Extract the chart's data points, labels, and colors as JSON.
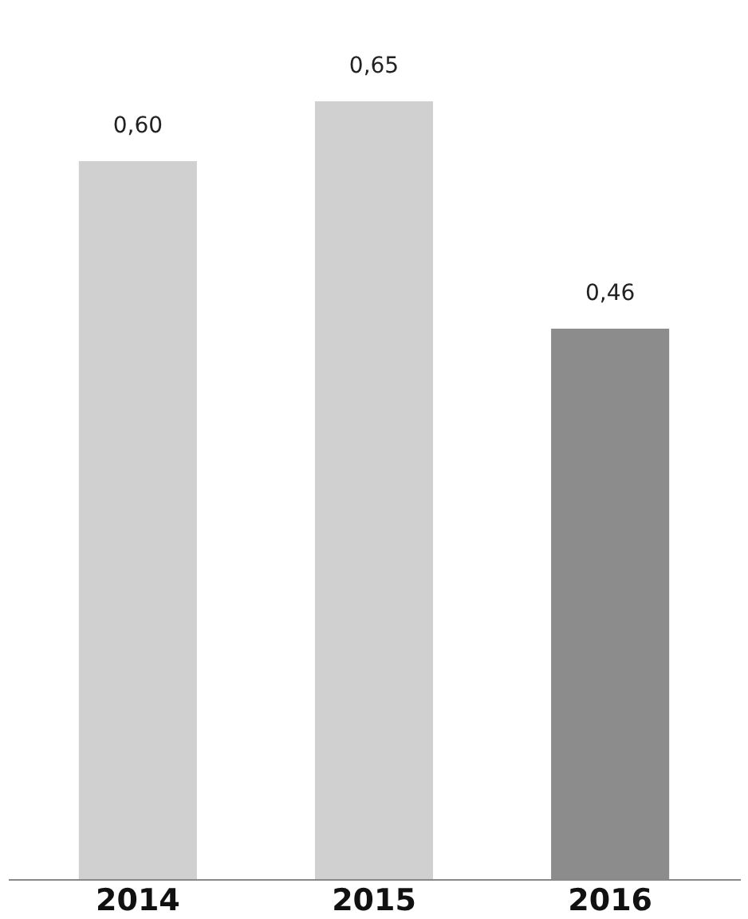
{
  "chart_data": {
    "type": "bar",
    "categories": [
      "2014",
      "2015",
      "2016"
    ],
    "values": [
      0.6,
      0.65,
      0.46
    ],
    "colors": [
      "#d0d0d0",
      "#d0d0d0",
      "#8c8c8c"
    ],
    "value_labels": [
      "0,60",
      "0,65",
      "0,46"
    ]
  }
}
